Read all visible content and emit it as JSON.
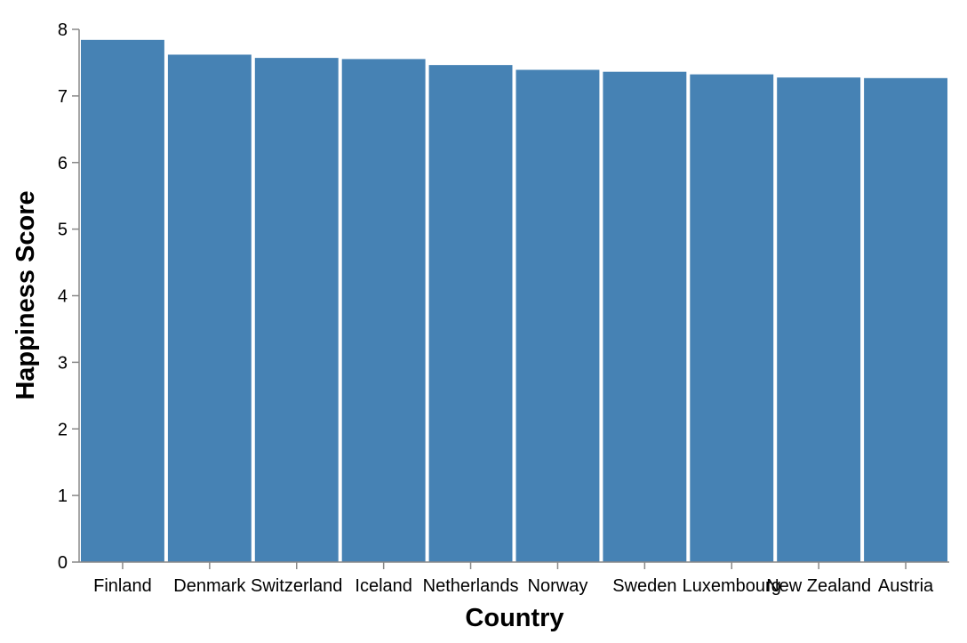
{
  "chart_data": {
    "type": "bar",
    "title": "",
    "xlabel": "Country",
    "ylabel": "Happiness Score",
    "categories": [
      "Finland",
      "Denmark",
      "Switzerland",
      "Iceland",
      "Netherlands",
      "Norway",
      "Sweden",
      "Luxembourg",
      "New Zealand",
      "Austria"
    ],
    "values": [
      7.842,
      7.62,
      7.571,
      7.554,
      7.464,
      7.392,
      7.363,
      7.324,
      7.277,
      7.268
    ],
    "ylim": [
      0,
      8
    ],
    "yticks": [
      "0",
      "1",
      "2",
      "3",
      "4",
      "5",
      "6",
      "7",
      "8"
    ],
    "bar_color": "#4682b4",
    "grid": false,
    "legend": "none"
  }
}
